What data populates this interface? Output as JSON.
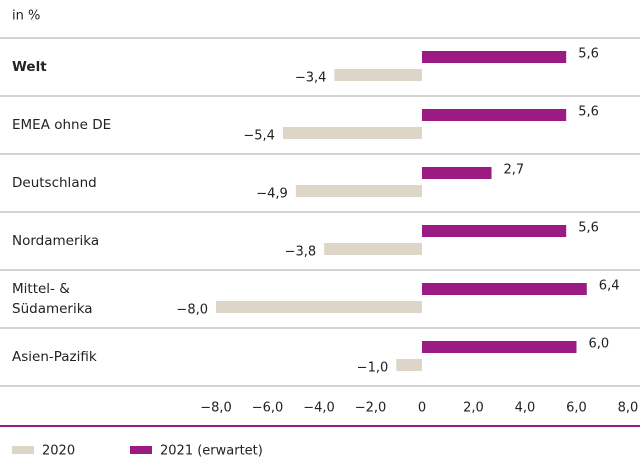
{
  "chart_data": {
    "type": "hbar",
    "unit_label": "in %",
    "categories": [
      "Welt",
      "EMEA ohne DE",
      "Deutschland",
      "Nordamerika",
      "Mittel- & Südamerika",
      "Asien-Pazifik"
    ],
    "series": [
      {
        "name": "2020",
        "color": "#ddd5c8",
        "values": [
          -3.4,
          -5.4,
          -4.9,
          -3.8,
          -8.0,
          -1.0
        ],
        "value_labels": [
          "−3,4",
          "−5,4",
          "−4,9",
          "−3,8",
          "−8,0",
          "−1,0"
        ]
      },
      {
        "name": "2021 (erwartet)",
        "color": "#9b1b82",
        "values": [
          5.6,
          5.6,
          2.7,
          5.6,
          6.4,
          6.0
        ],
        "value_labels": [
          "5,6",
          "5,6",
          "2,7",
          "5,6",
          "6,4",
          "6,0"
        ]
      }
    ],
    "xlim": [
      -8,
      8
    ],
    "xticks": [
      {
        "value": -8,
        "label": "−8,0"
      },
      {
        "value": -6,
        "label": "−6,0"
      },
      {
        "value": -4,
        "label": "−4,0"
      },
      {
        "value": -2,
        "label": "−2,0"
      },
      0,
      {
        "value": 2,
        "label": "2,0"
      },
      {
        "value": 4,
        "label": "4,0"
      },
      {
        "value": 6,
        "label": "6,0"
      },
      {
        "value": 8,
        "label": "8,0"
      }
    ]
  }
}
